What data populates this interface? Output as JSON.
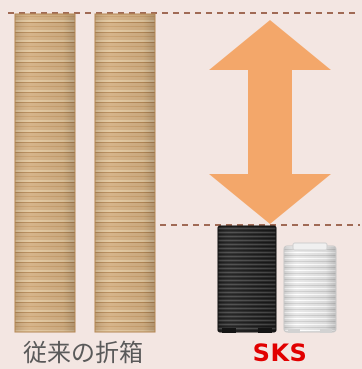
{
  "labels": {
    "conventional": "従来の折箱",
    "sks": "SKS"
  },
  "colors": {
    "background": "#f3e6e2",
    "arrow": "#f3a76a",
    "guide_line": "#a06a55",
    "cardboard_light": "#dbb98b",
    "cardboard_dark": "#c2965f",
    "black_stack": "#2b2b2b",
    "clear_stack": "#e6e6e6",
    "label_left": "#5a5a5a",
    "label_right": "#e10000"
  },
  "icons": {
    "arrow": "double-headed-vertical-arrow"
  }
}
